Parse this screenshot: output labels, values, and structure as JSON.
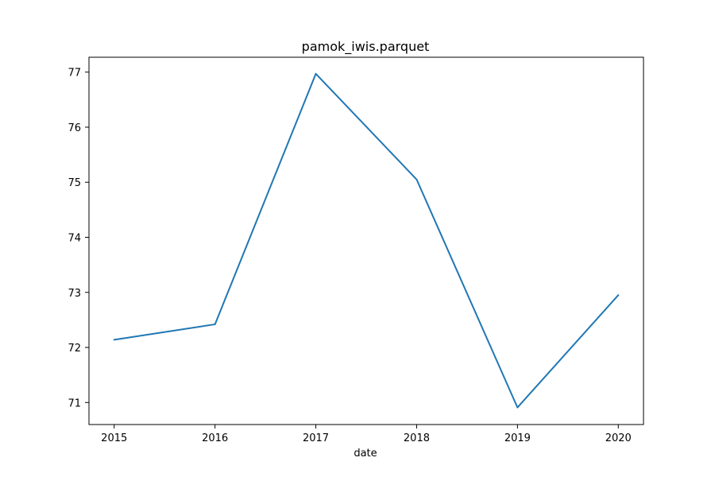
{
  "chart_data": {
    "type": "line",
    "title": "pamok_iwis.parquet",
    "xlabel": "date",
    "ylabel": "",
    "x": [
      2015,
      2016,
      2017,
      2018,
      2019,
      2020
    ],
    "xticks": [
      "2015",
      "2016",
      "2017",
      "2018",
      "2019",
      "2020"
    ],
    "yticks": [
      "71",
      "72",
      "73",
      "74",
      "75",
      "76",
      "77"
    ],
    "xlim": [
      2014.75,
      2020.25
    ],
    "ylim": [
      70.6,
      77.27
    ],
    "series": [
      {
        "values": [
          72.14,
          72.42,
          76.97,
          75.05,
          70.91,
          72.95
        ],
        "color": "#1f77b4"
      }
    ],
    "grid": false,
    "legend": "none"
  }
}
